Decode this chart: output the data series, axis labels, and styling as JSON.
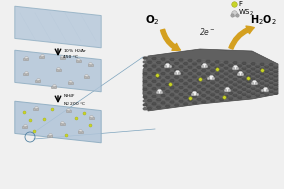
{
  "background": "#f0f0f0",
  "sheet_color": "#b0c4d8",
  "sheet_edge_color": "#8aaabf",
  "f_color": "#c8d428",
  "arrow_color": "#d4a020",
  "label_o2": "O$_2$",
  "label_h2o2": "H$_2$O$_2$",
  "label_2e": "2e$^-$",
  "label_f": "F",
  "label_ws2": "WS$_2$",
  "step1_text": "10% H$_2$/Ar\n450 °C",
  "step2_text": "NH$_4$F\nN$_2$ 200 °C",
  "hex_dark": "#606060",
  "hex_light": "#888888",
  "hex_edge": "#404040",
  "ws2_white": "#e8e8e8",
  "ws2_gray": "#b0b0b0"
}
